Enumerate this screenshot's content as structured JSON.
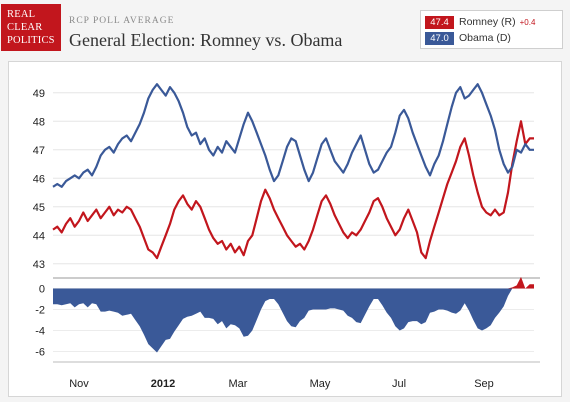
{
  "logo": {
    "lines": [
      "REAL",
      "CLEAR",
      "POLITICS"
    ]
  },
  "header": {
    "subtitle": "RCP POLL AVERAGE",
    "title": "General Election: Romney vs. Obama"
  },
  "legend": [
    {
      "value": "47.4",
      "name": "Romney (R)",
      "change": "+0.4",
      "color": "#c2161d"
    },
    {
      "value": "47.0",
      "name": "Obama (D)",
      "change": "",
      "color": "#3a5998"
    }
  ],
  "chart_data": {
    "type": "line",
    "title": "General Election: Romney vs. Obama",
    "x_labels": [
      "Nov",
      "2012",
      "Mar",
      "May",
      "Jul",
      "Sep"
    ],
    "y_ticks": [
      43,
      44,
      45,
      46,
      47,
      48,
      49
    ],
    "ylim": [
      42.5,
      49.8
    ],
    "spread_ticks": [
      0,
      -2,
      -4,
      -6
    ],
    "spread_lim": [
      -7,
      1
    ],
    "series": [
      {
        "name": "Romney (R)",
        "color": "#c2161d",
        "values": [
          44.2,
          44.3,
          44.1,
          44.4,
          44.6,
          44.3,
          44.5,
          44.8,
          44.5,
          44.7,
          44.9,
          44.6,
          44.8,
          45.0,
          44.7,
          44.9,
          44.8,
          45.0,
          44.9,
          44.6,
          44.3,
          43.9,
          43.5,
          43.4,
          43.2,
          43.6,
          44.0,
          44.4,
          44.9,
          45.2,
          45.4,
          45.1,
          44.9,
          45.2,
          45.0,
          44.6,
          44.2,
          43.9,
          43.7,
          43.8,
          43.5,
          43.7,
          43.4,
          43.6,
          43.3,
          43.8,
          44.0,
          44.6,
          45.2,
          45.6,
          45.3,
          44.9,
          44.6,
          44.3,
          44.0,
          43.8,
          43.6,
          43.7,
          43.5,
          43.8,
          44.2,
          44.7,
          45.2,
          45.4,
          45.1,
          44.7,
          44.4,
          44.1,
          43.9,
          44.1,
          44.0,
          44.2,
          44.5,
          44.8,
          45.2,
          45.3,
          45.0,
          44.6,
          44.3,
          44.0,
          44.2,
          44.6,
          44.9,
          44.5,
          44.1,
          43.4,
          43.2,
          43.8,
          44.3,
          44.8,
          45.3,
          45.8,
          46.2,
          46.6,
          47.1,
          47.4,
          46.8,
          46.1,
          45.5,
          45.0,
          44.8,
          44.7,
          44.9,
          44.7,
          44.8,
          45.5,
          46.5,
          47.3,
          48.0,
          47.2,
          47.4,
          47.4
        ]
      },
      {
        "name": "Obama (D)",
        "color": "#3a5998",
        "values": [
          45.7,
          45.8,
          45.7,
          45.9,
          46.0,
          46.1,
          46.0,
          46.2,
          46.3,
          46.1,
          46.4,
          46.8,
          47.0,
          47.1,
          46.9,
          47.2,
          47.4,
          47.5,
          47.3,
          47.6,
          47.9,
          48.3,
          48.8,
          49.1,
          49.3,
          49.1,
          48.9,
          49.2,
          49.0,
          48.7,
          48.3,
          47.8,
          47.5,
          47.6,
          47.2,
          47.4,
          47.0,
          46.8,
          47.1,
          46.9,
          47.3,
          47.1,
          46.9,
          47.4,
          47.9,
          48.3,
          48.0,
          47.6,
          47.2,
          46.8,
          46.3,
          45.9,
          46.1,
          46.6,
          47.1,
          47.4,
          47.3,
          46.8,
          46.3,
          45.9,
          46.2,
          46.7,
          47.2,
          47.4,
          47.0,
          46.6,
          46.4,
          46.2,
          46.5,
          46.9,
          47.2,
          47.5,
          47.0,
          46.5,
          46.2,
          46.3,
          46.6,
          46.9,
          47.1,
          47.6,
          48.2,
          48.4,
          48.1,
          47.6,
          47.2,
          46.8,
          46.4,
          46.1,
          46.5,
          46.8,
          47.3,
          47.9,
          48.5,
          49.0,
          49.2,
          48.8,
          48.9,
          49.1,
          49.3,
          49.0,
          48.6,
          48.2,
          47.7,
          47.0,
          46.5,
          46.2,
          46.4,
          47.0,
          46.9,
          47.2,
          47.0,
          47.0
        ]
      }
    ]
  }
}
